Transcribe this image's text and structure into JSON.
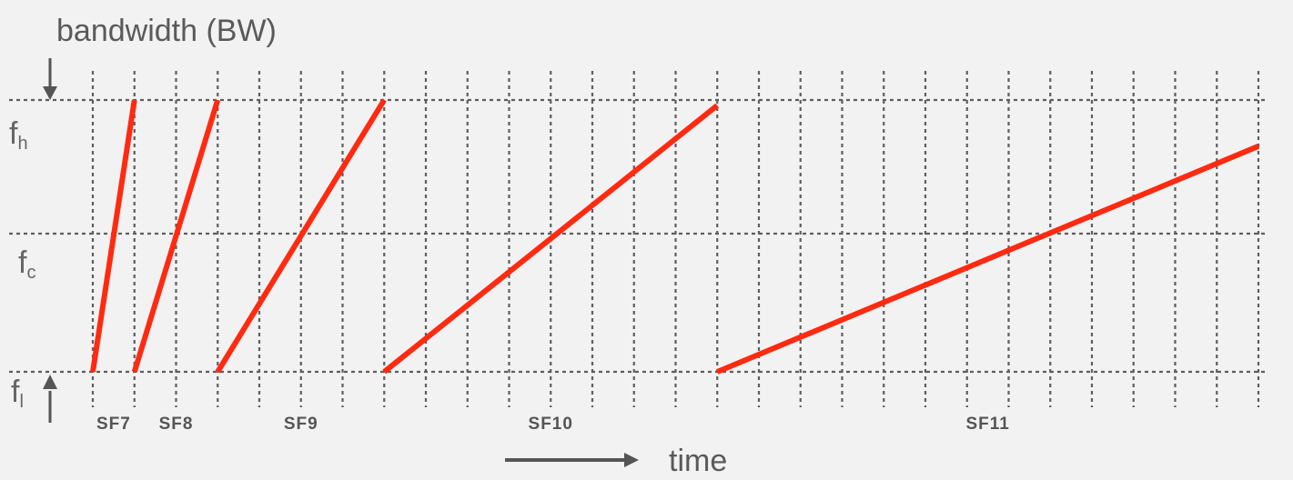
{
  "diagram": {
    "y_axis_label": "bandwidth (BW)",
    "x_axis_label": "time",
    "frequency_labels": [
      {
        "id": "high",
        "main": "f",
        "sub": "h"
      },
      {
        "id": "center",
        "main": "f",
        "sub": "c"
      },
      {
        "id": "low",
        "main": "f",
        "sub": "l"
      }
    ],
    "spreading_factors": [
      {
        "label": "SF7",
        "start_slot": 0,
        "end_slot": 1
      },
      {
        "label": "SF8",
        "start_slot": 1,
        "end_slot": 3
      },
      {
        "label": "SF9",
        "start_slot": 3,
        "end_slot": 7
      },
      {
        "label": "SF10",
        "start_slot": 7,
        "end_slot": 15,
        "end_level": 0.98
      },
      {
        "label": "SF11",
        "start_slot": 15,
        "end_slot": 28,
        "end_level": 0.83
      }
    ],
    "grid": {
      "time_slots": 28,
      "frequency_rows": [
        "f_h",
        "f_c",
        "f_l"
      ]
    },
    "colors": {
      "chirp": "#ff2a10",
      "grid": "#5e5e5e",
      "background": "#f2f2f2",
      "text": "#5a5a5a"
    }
  }
}
